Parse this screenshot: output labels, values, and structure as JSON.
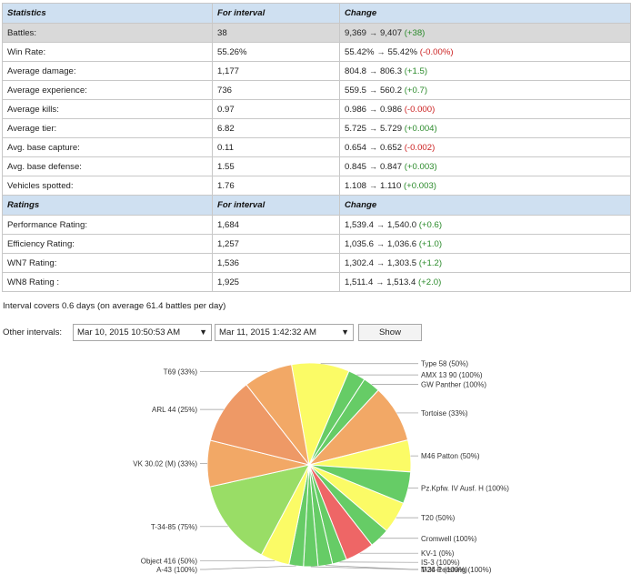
{
  "stats_headers": {
    "name": "Statistics",
    "interval": "For interval",
    "change": "Change"
  },
  "stats_rows": [
    {
      "name": "Battles:",
      "interval": "38",
      "from": "9,369",
      "to": "9,407",
      "delta": "(+38)",
      "sign": "pos",
      "highlight": true
    },
    {
      "name": "Win Rate:",
      "interval": "55.26%",
      "from": "55.42%",
      "to": "55.42%",
      "delta": "(-0.00%)",
      "sign": "neg"
    },
    {
      "name": "Average damage:",
      "interval": "1,177",
      "from": "804.8",
      "to": "806.3",
      "delta": "(+1.5)",
      "sign": "pos"
    },
    {
      "name": "Average experience:",
      "interval": "736",
      "from": "559.5",
      "to": "560.2",
      "delta": "(+0.7)",
      "sign": "pos"
    },
    {
      "name": "Average kills:",
      "interval": "0.97",
      "from": "0.986",
      "to": "0.986",
      "delta": "(-0.000)",
      "sign": "neg"
    },
    {
      "name": "Average tier:",
      "interval": "6.82",
      "from": "5.725",
      "to": "5.729",
      "delta": "(+0.004)",
      "sign": "pos"
    },
    {
      "name": "Avg. base capture:",
      "interval": "0.11",
      "from": "0.654",
      "to": "0.652",
      "delta": "(-0.002)",
      "sign": "neg"
    },
    {
      "name": "Avg. base defense:",
      "interval": "1.55",
      "from": "0.845",
      "to": "0.847",
      "delta": "(+0.003)",
      "sign": "pos"
    },
    {
      "name": "Vehicles spotted:",
      "interval": "1.76",
      "from": "1.108",
      "to": "1.110",
      "delta": "(+0.003)",
      "sign": "pos"
    }
  ],
  "ratings_headers": {
    "name": "Ratings",
    "interval": "For interval",
    "change": "Change"
  },
  "rating_rows": [
    {
      "name": "Performance Rating:",
      "interval": "1,684",
      "from": "1,539.4",
      "to": "1,540.0",
      "delta": "(+0.6)",
      "sign": "pos"
    },
    {
      "name": "Efficiency Rating:",
      "interval": "1,257",
      "from": "1,035.6",
      "to": "1,036.6",
      "delta": "(+1.0)",
      "sign": "pos"
    },
    {
      "name": "WN7 Rating:",
      "interval": "1,536",
      "from": "1,302.4",
      "to": "1,303.5",
      "delta": "(+1.2)",
      "sign": "pos"
    },
    {
      "name": "WN8 Rating :",
      "interval": "1,925",
      "from": "1,511.4",
      "to": "1,513.4",
      "delta": "(+2.0)",
      "sign": "pos"
    }
  ],
  "interval_note": "Interval covers 0.6 days (on average 61.4 battles per day)",
  "other_intervals_label": "Other intervals:",
  "interval_from": "Mar 10, 2015 10:50:53 AM",
  "interval_to": "Mar 11, 2015 1:42:32 AM",
  "dropdown_caret": "▼",
  "arrow_glyph": "→",
  "show_label": "Show",
  "colors": {
    "positive": "#2a8a2a",
    "negative": "#cc2222",
    "header_bg": "#cfe0f1"
  },
  "chart_data": {
    "type": "pie",
    "title": "",
    "start_angle_deg": 80,
    "slices": [
      {
        "label": "Type 58 (50%)",
        "value": 2,
        "color": "#fbfb66"
      },
      {
        "label": "AMX 13 90 (100%)",
        "value": 0.6,
        "color": "#66cc66"
      },
      {
        "label": "GW Panther (100%)",
        "value": 0.6,
        "color": "#66cc66"
      },
      {
        "label": "Tortoise (33%)",
        "value": 2,
        "color": "#f2a866"
      },
      {
        "label": "M46 Patton (50%)",
        "value": 1.1,
        "color": "#fbfb66"
      },
      {
        "label": "Pz.Kpfw. IV Ausf. H (100%)",
        "value": 1.1,
        "color": "#66cc66"
      },
      {
        "label": "T20 (50%)",
        "value": 1.1,
        "color": "#fbfb66"
      },
      {
        "label": "Cromwell (100%)",
        "value": 0.7,
        "color": "#66cc66"
      },
      {
        "label": "KV-1 (0%)",
        "value": 1.0,
        "color": "#ee6666"
      },
      {
        "label": "IS-3 (100%)",
        "value": 0.5,
        "color": "#66cc66"
      },
      {
        "label": "M26 Pershing (100%)",
        "value": 0.5,
        "color": "#66cc66"
      },
      {
        "label": "T-34-1 (100%)",
        "value": 0.5,
        "color": "#66cc66"
      },
      {
        "label": "A-43 (100%)",
        "value": 0.5,
        "color": "#66cc66"
      },
      {
        "label": "Object 416 (50%)",
        "value": 1.0,
        "color": "#fbfb66"
      },
      {
        "label": "T-34-85 (75%)",
        "value": 3.0,
        "color": "#99dd66"
      },
      {
        "label": "VK 30.02 (M) (33%)",
        "value": 1.6,
        "color": "#f2a866"
      },
      {
        "label": "ARL 44 (25%)",
        "value": 2.3,
        "color": "#ee9966"
      },
      {
        "label": "T69 (33%)",
        "value": 1.7,
        "color": "#f2a866"
      }
    ]
  }
}
